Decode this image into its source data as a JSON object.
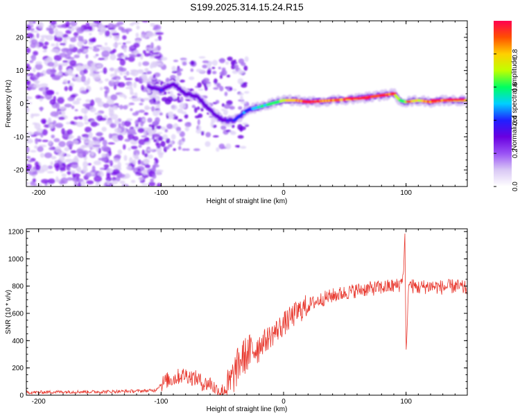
{
  "title": "S199.2025.314.15.24.R15",
  "chart_data": [
    {
      "type": "heatmap",
      "name": "spectrogram",
      "xlabel": "Height of straight line (km)",
      "ylabel": "Frequency (Hz)",
      "xlim": [
        -210,
        150
      ],
      "ylim": [
        -25,
        25
      ],
      "x_ticks": [
        -200,
        -100,
        0,
        100
      ],
      "y_ticks": [
        -20,
        -10,
        0,
        10,
        20
      ],
      "colorbar": {
        "label": "Normalized spectral amplitude",
        "range": [
          0,
          1
        ],
        "ticks": [
          "0.0",
          "0.2",
          "0.4",
          "0.6",
          "0.8"
        ],
        "colormap": [
          "#ffffff",
          "#d9c8f5",
          "#9a52f5",
          "#6a00e0",
          "#2020ff",
          "#00d0ff",
          "#00ff60",
          "#c0ff00",
          "#ffd000",
          "#ff5000",
          "#ff0050"
        ]
      },
      "ridge": {
        "x": [
          -110,
          -100,
          -90,
          -80,
          -70,
          -60,
          -50,
          -40,
          -30,
          -20,
          -10,
          0,
          10,
          20,
          40,
          60,
          80,
          90,
          95,
          100,
          110,
          120,
          130,
          140,
          150
        ],
        "freq": [
          5,
          4,
          6,
          3,
          2,
          -2,
          -5,
          -5,
          -2,
          -1,
          0,
          1,
          1,
          0.5,
          1,
          1.5,
          2.5,
          3,
          1,
          0.5,
          1,
          0.5,
          1,
          1,
          1
        ],
        "amplitude": [
          0.35,
          0.35,
          0.3,
          0.3,
          0.3,
          0.3,
          0.35,
          0.4,
          0.45,
          0.55,
          0.6,
          0.7,
          0.9,
          0.95,
          0.9,
          0.95,
          0.95,
          0.9,
          0.6,
          0.7,
          0.8,
          0.9,
          0.9,
          0.85,
          0.8
        ]
      }
    },
    {
      "type": "line",
      "name": "snr",
      "xlabel": "Height of straight line (km)",
      "ylabel": "SNR (10 * v/v)",
      "xlim": [
        -210,
        150
      ],
      "ylim": [
        0,
        1220
      ],
      "x_ticks": [
        -200,
        -100,
        0,
        100
      ],
      "y_ticks": [
        0,
        200,
        400,
        600,
        800,
        1000,
        1200
      ],
      "color": "#e8392f",
      "x": [
        -210,
        -180,
        -150,
        -120,
        -105,
        -100,
        -95,
        -90,
        -85,
        -80,
        -75,
        -70,
        -65,
        -60,
        -55,
        -50,
        -45,
        -42,
        -38,
        -35,
        -30,
        -25,
        -20,
        -15,
        -10,
        -5,
        0,
        5,
        10,
        15,
        20,
        25,
        30,
        40,
        50,
        60,
        70,
        80,
        90,
        95,
        98,
        99,
        100,
        101,
        102,
        105,
        110,
        120,
        130,
        140,
        150
      ],
      "y": [
        20,
        25,
        25,
        30,
        35,
        80,
        110,
        120,
        140,
        150,
        130,
        120,
        80,
        90,
        40,
        30,
        60,
        120,
        200,
        260,
        300,
        330,
        370,
        400,
        440,
        480,
        520,
        560,
        600,
        630,
        660,
        680,
        700,
        730,
        750,
        770,
        780,
        790,
        800,
        810,
        900,
        1220,
        300,
        500,
        820,
        800,
        790,
        800,
        790,
        800,
        780
      ]
    }
  ]
}
